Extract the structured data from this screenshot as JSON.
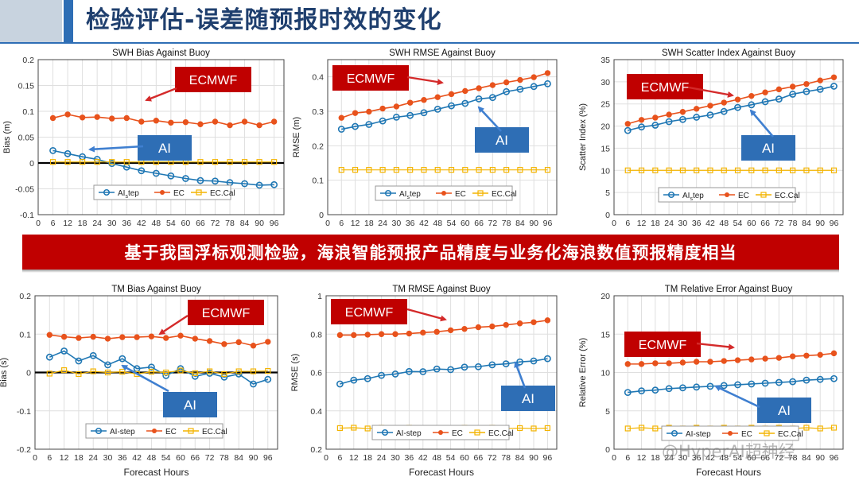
{
  "page_title": "检验评估-误差随预报时效的变化",
  "banner": "基于我国浮标观测检验，海浪智能预报产品精度与业务化海浪数值预报精度相当",
  "watermark": "@HyperAI超神经",
  "colors": {
    "ai": "#1f77b4",
    "ec": "#e8521c",
    "ec_cal": "#f4b400",
    "callout_red": "#c00000",
    "callout_blue": "#2e6eb5",
    "arrow_red": "#d42a2a",
    "arrow_blue": "#3f7fd0"
  },
  "chart_data": [
    {
      "type": "line",
      "title": "SWH Bias Against Buoy",
      "xlabel": "",
      "ylabel": "Bias (m)",
      "ylim": [
        -0.1,
        0.2
      ],
      "yticks": [
        -0.1,
        -0.05,
        0,
        0.05,
        0.1,
        0.15,
        0.2
      ],
      "xlim": [
        0,
        100
      ],
      "xticks": [
        0,
        6,
        12,
        18,
        24,
        30,
        36,
        42,
        48,
        54,
        60,
        66,
        72,
        78,
        84,
        90,
        96
      ],
      "zero_line": true,
      "x": [
        6,
        12,
        18,
        24,
        30,
        36,
        42,
        48,
        54,
        60,
        66,
        72,
        78,
        84,
        90,
        96
      ],
      "series": [
        {
          "name": "AI_step",
          "legend_main": "AI",
          "legend_sub": "s",
          "legend_rest": "tep",
          "values": [
            0.024,
            0.018,
            0.012,
            0.007,
            -0.001,
            -0.008,
            -0.015,
            -0.02,
            -0.025,
            -0.03,
            -0.034,
            -0.035,
            -0.038,
            -0.04,
            -0.043,
            -0.042
          ]
        },
        {
          "name": "EC",
          "values": [
            0.087,
            0.094,
            0.088,
            0.089,
            0.086,
            0.087,
            0.08,
            0.082,
            0.078,
            0.079,
            0.075,
            0.08,
            0.073,
            0.08,
            0.073,
            0.08
          ]
        },
        {
          "name": "EC.Cal",
          "values": [
            0.002,
            0.002,
            0.002,
            0.002,
            0.002,
            0.002,
            0.002,
            0.002,
            0.002,
            0.002,
            0.002,
            0.002,
            0.002,
            0.002,
            0.002,
            0.002
          ]
        }
      ],
      "annotations": [
        {
          "text": "ECMWF",
          "style": "red",
          "arrow_to": [
            40,
            0.12
          ]
        },
        {
          "text": "AI",
          "style": "blue",
          "arrow_to": [
            20,
            0.025
          ]
        }
      ]
    },
    {
      "type": "line",
      "title": "SWH RMSE Against Buoy",
      "xlabel": "",
      "ylabel": "RMSE (m)",
      "ylim": [
        0,
        0.45
      ],
      "yticks": [
        0,
        0.1,
        0.2,
        0.3,
        0.4
      ],
      "xlim": [
        0,
        100
      ],
      "xticks": [
        0,
        6,
        12,
        18,
        24,
        30,
        36,
        42,
        48,
        54,
        60,
        66,
        72,
        78,
        84,
        90,
        96
      ],
      "zero_line": false,
      "x": [
        6,
        12,
        18,
        24,
        30,
        36,
        42,
        48,
        54,
        60,
        66,
        72,
        78,
        84,
        90,
        96
      ],
      "series": [
        {
          "name": "AI_step",
          "legend_main": "AI",
          "legend_sub": "s",
          "legend_rest": "tep",
          "values": [
            0.248,
            0.256,
            0.262,
            0.272,
            0.283,
            0.288,
            0.296,
            0.306,
            0.316,
            0.323,
            0.336,
            0.34,
            0.357,
            0.364,
            0.372,
            0.38
          ]
        },
        {
          "name": "EC",
          "values": [
            0.281,
            0.295,
            0.299,
            0.308,
            0.314,
            0.325,
            0.333,
            0.341,
            0.35,
            0.359,
            0.367,
            0.376,
            0.384,
            0.391,
            0.399,
            0.411
          ]
        },
        {
          "name": "EC.Cal",
          "values": [
            0.13,
            0.13,
            0.13,
            0.13,
            0.13,
            0.13,
            0.13,
            0.13,
            0.13,
            0.13,
            0.13,
            0.13,
            0.13,
            0.13,
            0.13,
            0.13
          ]
        }
      ],
      "annotations": [
        {
          "text": "ECMWF",
          "style": "red",
          "arrow_to": [
            51,
            0.41
          ]
        },
        {
          "text": "AI",
          "style": "blue",
          "arrow_to": [
            65,
            0.335
          ]
        }
      ]
    },
    {
      "type": "line",
      "title": "SWH Scatter Index Against Buoy",
      "xlabel": "",
      "ylabel": "Scatter Index (%)",
      "ylim": [
        0,
        35
      ],
      "yticks": [
        0,
        5,
        10,
        15,
        20,
        25,
        30,
        35
      ],
      "xlim": [
        0,
        100
      ],
      "xticks": [
        0,
        6,
        12,
        18,
        24,
        30,
        36,
        42,
        48,
        54,
        60,
        66,
        72,
        78,
        84,
        90,
        96
      ],
      "zero_line": false,
      "x": [
        6,
        12,
        18,
        24,
        30,
        36,
        42,
        48,
        54,
        60,
        66,
        72,
        78,
        84,
        90,
        96
      ],
      "series": [
        {
          "name": "AI_step",
          "legend_main": "AI",
          "legend_sub": "s",
          "legend_rest": "tep",
          "values": [
            19.0,
            19.8,
            20.2,
            21.0,
            21.5,
            22.0,
            22.5,
            23.3,
            24.2,
            24.8,
            25.5,
            26.1,
            27.2,
            27.8,
            28.3,
            29.0
          ]
        },
        {
          "name": "EC",
          "values": [
            20.5,
            21.4,
            21.9,
            22.6,
            23.2,
            23.9,
            24.6,
            25.3,
            26.0,
            26.8,
            27.6,
            28.3,
            28.9,
            29.5,
            30.3,
            31.0
          ]
        },
        {
          "name": "EC.Cal",
          "values": [
            10.0,
            10.0,
            10.0,
            10.0,
            10.0,
            10.0,
            10.0,
            10.0,
            10.0,
            10.0,
            10.0,
            10.0,
            10.0,
            10.0,
            10.0,
            10.0
          ]
        }
      ],
      "annotations": [
        {
          "text": "ECMWF",
          "style": "red",
          "arrow_to": [
            39,
            28.2
          ]
        },
        {
          "text": "AI",
          "style": "blue",
          "arrow_to": [
            47,
            24.0
          ]
        }
      ]
    },
    {
      "type": "line",
      "title": "TM Bias Against Buoy",
      "xlabel": "Forecast Hours",
      "ylabel": "Bias (s)",
      "ylim": [
        -0.2,
        0.2
      ],
      "yticks": [
        -0.2,
        -0.1,
        0,
        0.1,
        0.2
      ],
      "xlim": [
        0,
        100
      ],
      "xticks": [
        0,
        6,
        12,
        18,
        24,
        30,
        36,
        42,
        48,
        54,
        60,
        66,
        72,
        78,
        84,
        90,
        96
      ],
      "zero_line": true,
      "x": [
        6,
        12,
        18,
        24,
        30,
        36,
        42,
        48,
        54,
        60,
        66,
        72,
        78,
        84,
        90,
        96
      ],
      "series": [
        {
          "name": "AI-step",
          "legend_main": "AI-step",
          "legend_sub": "",
          "legend_rest": "",
          "values": [
            0.04,
            0.056,
            0.03,
            0.044,
            0.02,
            0.036,
            0.01,
            0.014,
            -0.008,
            0.01,
            -0.01,
            -0.002,
            -0.012,
            -0.004,
            -0.03,
            -0.018
          ]
        },
        {
          "name": "EC",
          "values": [
            0.098,
            0.093,
            0.09,
            0.093,
            0.088,
            0.092,
            0.092,
            0.094,
            0.09,
            0.096,
            0.088,
            0.082,
            0.074,
            0.079,
            0.07,
            0.08
          ]
        },
        {
          "name": "EC.Cal",
          "values": [
            -0.003,
            0.006,
            -0.004,
            0.003,
            0.0,
            0.002,
            -0.004,
            0.002,
            0.0,
            0.005,
            -0.002,
            0.003,
            -0.004,
            0.003,
            0.003,
            0.004
          ]
        }
      ],
      "annotations": [
        {
          "text": "ECMWF",
          "style": "red",
          "arrow_to": [
            45,
            0.1
          ]
        },
        {
          "text": "AI",
          "style": "blue",
          "arrow_to": [
            67,
            0.008
          ]
        }
      ]
    },
    {
      "type": "line",
      "title": "TM RMSE Against Buoy",
      "xlabel": "Forecast Hours",
      "ylabel": "RMSE (s)",
      "ylim": [
        0.2,
        1.0
      ],
      "yticks": [
        0.2,
        0.4,
        0.6,
        0.8,
        1.0
      ],
      "xlim": [
        0,
        100
      ],
      "xticks": [
        0,
        6,
        12,
        18,
        24,
        30,
        36,
        42,
        48,
        54,
        60,
        66,
        72,
        78,
        84,
        90,
        96
      ],
      "zero_line": false,
      "x": [
        6,
        12,
        18,
        24,
        30,
        36,
        42,
        48,
        54,
        60,
        66,
        72,
        78,
        84,
        90,
        96
      ],
      "series": [
        {
          "name": "AI-step",
          "legend_main": "AI-step",
          "legend_sub": "",
          "legend_rest": "",
          "values": [
            0.54,
            0.56,
            0.568,
            0.585,
            0.592,
            0.605,
            0.604,
            0.618,
            0.615,
            0.628,
            0.63,
            0.64,
            0.645,
            0.655,
            0.66,
            0.672
          ]
        },
        {
          "name": "EC",
          "values": [
            0.795,
            0.795,
            0.797,
            0.8,
            0.8,
            0.803,
            0.808,
            0.812,
            0.82,
            0.827,
            0.836,
            0.84,
            0.848,
            0.856,
            0.862,
            0.872
          ]
        },
        {
          "name": "EC.Cal",
          "values": [
            0.31,
            0.312,
            0.308,
            0.312,
            0.306,
            0.312,
            0.308,
            0.302,
            0.308,
            0.312,
            0.31,
            0.312,
            0.308,
            0.31,
            0.308,
            0.31
          ]
        }
      ],
      "annotations": [
        {
          "text": "ECMWF",
          "style": "red",
          "arrow_to": [
            55,
            0.825
          ]
        },
        {
          "text": "AI",
          "style": "blue",
          "arrow_to": [
            69,
            0.65
          ]
        }
      ]
    },
    {
      "type": "line",
      "title": "TM Relative Error Against Buoy",
      "xlabel": "Forecast Hours",
      "ylabel": "Relative Error (%)",
      "ylim": [
        0,
        20
      ],
      "yticks": [
        0,
        5,
        10,
        15,
        20
      ],
      "xlim": [
        0,
        100
      ],
      "xticks": [
        0,
        6,
        12,
        18,
        24,
        30,
        36,
        42,
        48,
        54,
        60,
        66,
        72,
        78,
        84,
        90,
        96
      ],
      "zero_line": false,
      "x": [
        6,
        12,
        18,
        24,
        30,
        36,
        42,
        48,
        54,
        60,
        66,
        72,
        78,
        84,
        90,
        96
      ],
      "series": [
        {
          "name": "AI-step",
          "legend_main": "AI-step",
          "legend_sub": "",
          "legend_rest": "",
          "values": [
            7.4,
            7.6,
            7.7,
            7.9,
            8.0,
            8.1,
            8.2,
            8.3,
            8.4,
            8.5,
            8.6,
            8.7,
            8.8,
            9.0,
            9.1,
            9.2
          ]
        },
        {
          "name": "EC",
          "values": [
            11.1,
            11.1,
            11.2,
            11.2,
            11.3,
            11.4,
            11.4,
            11.5,
            11.6,
            11.7,
            11.8,
            11.9,
            12.1,
            12.2,
            12.3,
            12.5
          ]
        },
        {
          "name": "EC.Cal",
          "values": [
            2.7,
            2.8,
            2.7,
            2.8,
            2.7,
            2.8,
            2.7,
            2.8,
            2.7,
            2.8,
            2.7,
            2.8,
            2.7,
            2.8,
            2.7,
            2.8
          ]
        }
      ],
      "annotations": [
        {
          "text": "ECMWF",
          "style": "red",
          "arrow_to": [
            56,
            13.6
          ]
        },
        {
          "text": "AI",
          "style": "blue",
          "arrow_to": [
            45,
            9.0
          ]
        }
      ]
    }
  ]
}
